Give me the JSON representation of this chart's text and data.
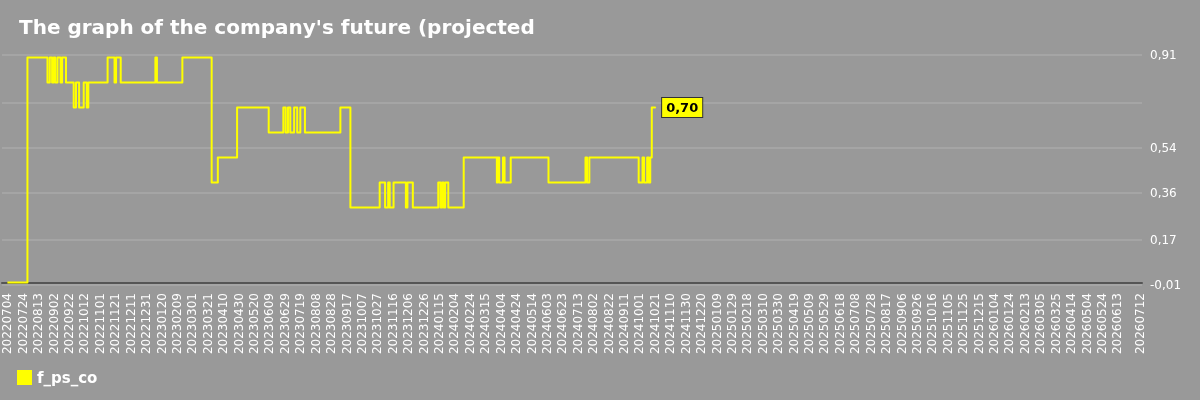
{
  "chart_data": {
    "type": "step",
    "title": "The graph of the company's future (projected",
    "series": [
      {
        "name": "f_ps_co",
        "color": "#ffff00",
        "x": [
          "2022-07-04",
          "2022-07-30",
          "2022-08-25",
          "2022-08-28",
          "2022-08-31",
          "2022-09-02",
          "2022-09-04",
          "2022-09-07",
          "2022-09-11",
          "2022-09-12",
          "2022-09-13",
          "2022-09-18",
          "2022-09-28",
          "2022-10-01",
          "2022-10-05",
          "2022-10-11",
          "2022-10-15",
          "2022-10-17",
          "2022-11-11",
          "2022-11-20",
          "2022-11-22",
          "2022-11-28",
          "2023-01-12",
          "2023-01-14",
          "2023-02-16",
          "2023-03-26",
          "2023-04-03",
          "2023-04-28",
          "2023-06-08",
          "2023-06-27",
          "2023-06-30",
          "2023-07-03",
          "2023-07-06",
          "2023-07-11",
          "2023-07-15",
          "2023-07-19",
          "2023-07-25",
          "2023-09-09",
          "2023-09-22",
          "2023-10-30",
          "2023-11-06",
          "2023-11-10",
          "2023-11-12",
          "2023-11-17",
          "2023-12-03",
          "2023-12-05",
          "2023-12-12",
          "2024-01-14",
          "2024-01-17",
          "2024-01-19",
          "2024-01-21",
          "2024-01-23",
          "2024-01-27",
          "2024-02-16",
          "2024-03-30",
          "2024-03-31",
          "2024-04-02",
          "2024-04-07",
          "2024-04-09",
          "2024-04-17",
          "2024-06-05",
          "2024-07-23",
          "2024-07-25",
          "2024-07-28",
          "2024-09-30",
          "2024-10-05",
          "2024-10-07",
          "2024-10-11",
          "2024-10-13",
          "2024-10-15",
          "2024-10-17",
          "2024-10-22"
        ],
        "values": [
          0.0,
          0.9,
          0.8,
          0.9,
          0.8,
          0.9,
          0.8,
          0.9,
          0.8,
          0.8,
          0.9,
          0.8,
          0.7,
          0.8,
          0.7,
          0.8,
          0.7,
          0.8,
          0.9,
          0.8,
          0.9,
          0.8,
          0.9,
          0.8,
          0.9,
          0.4,
          0.5,
          0.7,
          0.6,
          0.7,
          0.6,
          0.7,
          0.6,
          0.7,
          0.6,
          0.7,
          0.6,
          0.7,
          0.3,
          0.4,
          0.3,
          0.4,
          0.3,
          0.4,
          0.3,
          0.4,
          0.3,
          0.4,
          0.3,
          0.4,
          0.3,
          0.4,
          0.3,
          0.5,
          0.4,
          0.5,
          0.4,
          0.5,
          0.4,
          0.5,
          0.4,
          0.5,
          0.4,
          0.5,
          0.4,
          0.5,
          0.4,
          0.5,
          0.4,
          0.5,
          0.7,
          0.7
        ]
      }
    ],
    "annotations": [
      {
        "text": "0,70",
        "x": "2024-10-22",
        "y": 0.7
      }
    ],
    "xlim": [
      "2022-06-27",
      "2026-07-15"
    ],
    "xticks": [
      {
        "value": "2022-07-04",
        "label": "20220704"
      },
      {
        "value": "2022-07-24",
        "label": "20220724"
      },
      {
        "value": "2022-08-13",
        "label": "20220813"
      },
      {
        "value": "2022-09-02",
        "label": "20220902"
      },
      {
        "value": "2022-09-22",
        "label": "20220922"
      },
      {
        "value": "2022-10-12",
        "label": "20221012"
      },
      {
        "value": "2022-11-01",
        "label": "20221101"
      },
      {
        "value": "2022-11-21",
        "label": "20221121"
      },
      {
        "value": "2022-12-11",
        "label": "20221211"
      },
      {
        "value": "2022-12-31",
        "label": "20221231"
      },
      {
        "value": "2023-01-20",
        "label": "20230120"
      },
      {
        "value": "2023-02-09",
        "label": "20230209"
      },
      {
        "value": "2023-03-01",
        "label": "20230301"
      },
      {
        "value": "2023-03-21",
        "label": "20230321"
      },
      {
        "value": "2023-04-10",
        "label": "20230410"
      },
      {
        "value": "2023-04-30",
        "label": "20230430"
      },
      {
        "value": "2023-05-20",
        "label": "20230520"
      },
      {
        "value": "2023-06-09",
        "label": "20230609"
      },
      {
        "value": "2023-06-29",
        "label": "20230629"
      },
      {
        "value": "2023-07-19",
        "label": "20230719"
      },
      {
        "value": "2023-08-08",
        "label": "20230808"
      },
      {
        "value": "2023-08-28",
        "label": "20230828"
      },
      {
        "value": "2023-09-17",
        "label": "20230917"
      },
      {
        "value": "2023-10-07",
        "label": "20231007"
      },
      {
        "value": "2023-10-27",
        "label": "20231027"
      },
      {
        "value": "2023-11-16",
        "label": "20231116"
      },
      {
        "value": "2023-12-06",
        "label": "20231206"
      },
      {
        "value": "2023-12-26",
        "label": "20231226"
      },
      {
        "value": "2024-01-15",
        "label": "20240115"
      },
      {
        "value": "2024-02-04",
        "label": "20240204"
      },
      {
        "value": "2024-02-24",
        "label": "20240224"
      },
      {
        "value": "2024-03-15",
        "label": "20240315"
      },
      {
        "value": "2024-04-04",
        "label": "20240404"
      },
      {
        "value": "2024-04-24",
        "label": "20240424"
      },
      {
        "value": "2024-05-14",
        "label": "20240514"
      },
      {
        "value": "2024-06-03",
        "label": "20240603"
      },
      {
        "value": "2024-06-23",
        "label": "20240623"
      },
      {
        "value": "2024-07-13",
        "label": "20240713"
      },
      {
        "value": "2024-08-02",
        "label": "20240802"
      },
      {
        "value": "2024-08-22",
        "label": "20240822"
      },
      {
        "value": "2024-09-11",
        "label": "20240911"
      },
      {
        "value": "2024-10-01",
        "label": "20241001"
      },
      {
        "value": "2024-10-21",
        "label": "20241021"
      },
      {
        "value": "2024-11-10",
        "label": "20241110"
      },
      {
        "value": "2024-11-30",
        "label": "20241130"
      },
      {
        "value": "2024-12-20",
        "label": "20241220"
      },
      {
        "value": "2025-01-09",
        "label": "20250109"
      },
      {
        "value": "2025-01-29",
        "label": "20250129"
      },
      {
        "value": "2025-02-18",
        "label": "20250218"
      },
      {
        "value": "2025-03-10",
        "label": "20250310"
      },
      {
        "value": "2025-03-30",
        "label": "20250330"
      },
      {
        "value": "2025-04-19",
        "label": "20250419"
      },
      {
        "value": "2025-05-09",
        "label": "20250509"
      },
      {
        "value": "2025-05-29",
        "label": "20250529"
      },
      {
        "value": "2025-06-18",
        "label": "20250618"
      },
      {
        "value": "2025-07-08",
        "label": "20250708"
      },
      {
        "value": "2025-07-28",
        "label": "20250728"
      },
      {
        "value": "2025-08-17",
        "label": "20250817"
      },
      {
        "value": "2025-09-06",
        "label": "20250906"
      },
      {
        "value": "2025-09-26",
        "label": "20250926"
      },
      {
        "value": "2025-10-16",
        "label": "20251016"
      },
      {
        "value": "2025-11-05",
        "label": "20251105"
      },
      {
        "value": "2025-11-25",
        "label": "20251125"
      },
      {
        "value": "2025-12-15",
        "label": "20251215"
      },
      {
        "value": "2026-01-04",
        "label": "20260104"
      },
      {
        "value": "2026-01-24",
        "label": "20260124"
      },
      {
        "value": "2026-02-13",
        "label": "20260213"
      },
      {
        "value": "2026-03-05",
        "label": "20260305"
      },
      {
        "value": "2026-03-25",
        "label": "20260325"
      },
      {
        "value": "2026-04-14",
        "label": "20260414"
      },
      {
        "value": "2026-05-04",
        "label": "20260504"
      },
      {
        "value": "2026-05-24",
        "label": "20260524"
      },
      {
        "value": "2026-06-13",
        "label": "20260613"
      },
      {
        "value": "2026-07-12",
        "label": "20260712"
      }
    ],
    "ylim": [
      -0.01,
      0.91
    ],
    "yticks": [
      {
        "value": -0.01,
        "label": "-0,01"
      },
      {
        "value": 0.17,
        "label": "0,17"
      },
      {
        "value": 0.36,
        "label": "0,36"
      },
      {
        "value": 0.54,
        "label": "0,54"
      },
      {
        "value": 0.72,
        "label": null
      },
      {
        "value": 0.91,
        "label": "0,91"
      }
    ],
    "grid": "y",
    "legend": "bottom left",
    "marker": "none",
    "line_style": "solid"
  }
}
